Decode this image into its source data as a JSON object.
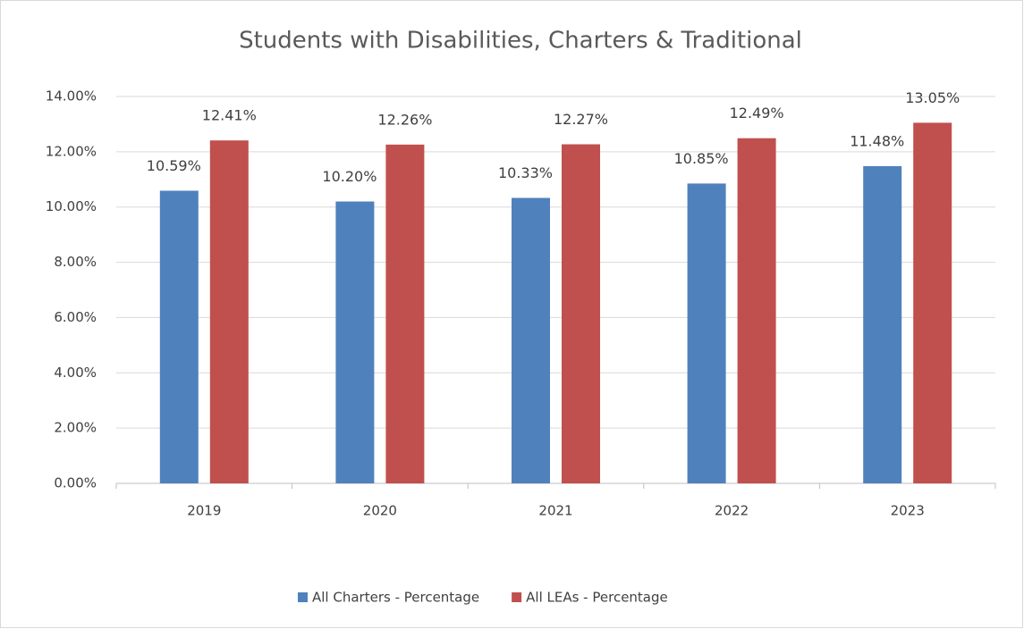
{
  "chart_data": {
    "type": "bar",
    "title": "Students with Disabilities, Charters & Traditional",
    "categories": [
      "2019",
      "2020",
      "2021",
      "2022",
      "2023"
    ],
    "series": [
      {
        "name": "All Charters - Percentage",
        "color": "#4f81bd",
        "values": [
          10.59,
          10.2,
          10.33,
          10.85,
          11.48
        ],
        "value_labels": [
          "10.59%",
          "10.20%",
          "10.33%",
          "10.85%",
          "11.48%"
        ]
      },
      {
        "name": "All LEAs - Percentage",
        "color": "#c0504d",
        "values": [
          12.41,
          12.26,
          12.27,
          12.49,
          13.05
        ],
        "value_labels": [
          "12.41%",
          "12.26%",
          "12.27%",
          "12.49%",
          "13.05%"
        ]
      }
    ],
    "ylim": [
      0,
      14
    ],
    "yticks": [
      {
        "value": 0,
        "label": "0.00%"
      },
      {
        "value": 2,
        "label": "2.00%"
      },
      {
        "value": 4,
        "label": "4.00%"
      },
      {
        "value": 6,
        "label": "6.00%"
      },
      {
        "value": 8,
        "label": "8.00%"
      },
      {
        "value": 10,
        "label": "10.00%"
      },
      {
        "value": 12,
        "label": "12.00%"
      },
      {
        "value": 14,
        "label": "14.00%"
      }
    ],
    "grid": true,
    "legend": "bottom"
  }
}
